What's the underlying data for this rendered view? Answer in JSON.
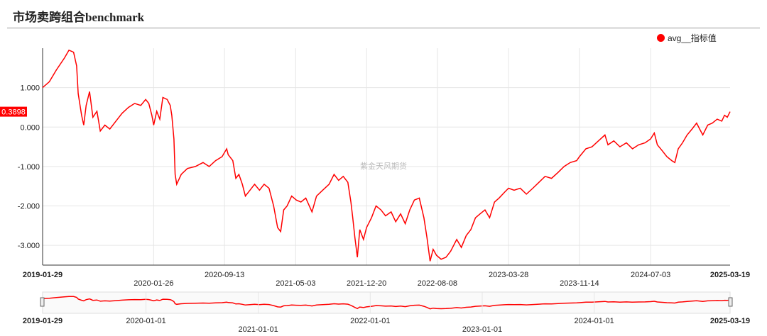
{
  "title": "市场卖跨组合benchmark",
  "watermark": "紫金天风期货",
  "legend": {
    "label": "avg__指标值",
    "color": "#ff0000"
  },
  "last_value_label": "0.3898",
  "chart_data": {
    "type": "line",
    "title": "市场卖跨组合benchmark",
    "series": [
      {
        "name": "avg__指标值",
        "color": "#ff0000",
        "points": [
          [
            "2019-01-29",
            1.0
          ],
          [
            "2019-02-20",
            1.15
          ],
          [
            "2019-03-15",
            1.45
          ],
          [
            "2019-04-10",
            1.75
          ],
          [
            "2019-04-25",
            1.95
          ],
          [
            "2019-05-10",
            1.9
          ],
          [
            "2019-05-20",
            1.55
          ],
          [
            "2019-05-25",
            0.85
          ],
          [
            "2019-06-05",
            0.3
          ],
          [
            "2019-06-12",
            0.05
          ],
          [
            "2019-06-20",
            0.55
          ],
          [
            "2019-07-01",
            0.9
          ],
          [
            "2019-07-12",
            0.25
          ],
          [
            "2019-07-25",
            0.4
          ],
          [
            "2019-08-05",
            -0.1
          ],
          [
            "2019-08-20",
            0.05
          ],
          [
            "2019-09-05",
            -0.05
          ],
          [
            "2019-09-25",
            0.15
          ],
          [
            "2019-10-15",
            0.35
          ],
          [
            "2019-11-05",
            0.5
          ],
          [
            "2019-11-25",
            0.6
          ],
          [
            "2019-12-15",
            0.55
          ],
          [
            "2019-12-31",
            0.7
          ],
          [
            "2020-01-10",
            0.6
          ],
          [
            "2020-01-20",
            0.3
          ],
          [
            "2020-01-26",
            0.05
          ],
          [
            "2020-02-05",
            0.4
          ],
          [
            "2020-02-15",
            0.2
          ],
          [
            "2020-02-25",
            0.75
          ],
          [
            "2020-03-10",
            0.7
          ],
          [
            "2020-03-20",
            0.55
          ],
          [
            "2020-03-25",
            0.3
          ],
          [
            "2020-04-01",
            -0.3
          ],
          [
            "2020-04-05",
            -1.2
          ],
          [
            "2020-04-10",
            -1.45
          ],
          [
            "2020-04-25",
            -1.2
          ],
          [
            "2020-05-15",
            -1.05
          ],
          [
            "2020-06-10",
            -1.0
          ],
          [
            "2020-07-05",
            -0.9
          ],
          [
            "2020-07-25",
            -1.0
          ],
          [
            "2020-08-15",
            -0.85
          ],
          [
            "2020-09-05",
            -0.75
          ],
          [
            "2020-09-20",
            -0.55
          ],
          [
            "2020-09-25",
            -0.7
          ],
          [
            "2020-10-10",
            -0.85
          ],
          [
            "2020-10-20",
            -1.3
          ],
          [
            "2020-10-30",
            -1.2
          ],
          [
            "2020-11-10",
            -1.45
          ],
          [
            "2020-11-20",
            -1.75
          ],
          [
            "2020-12-05",
            -1.6
          ],
          [
            "2020-12-20",
            -1.45
          ],
          [
            "2021-01-05",
            -1.6
          ],
          [
            "2021-01-20",
            -1.45
          ],
          [
            "2021-02-05",
            -1.55
          ],
          [
            "2021-02-20",
            -2.0
          ],
          [
            "2021-03-05",
            -2.55
          ],
          [
            "2021-03-15",
            -2.65
          ],
          [
            "2021-03-25",
            -2.1
          ],
          [
            "2021-04-05",
            -2.0
          ],
          [
            "2021-04-20",
            -1.75
          ],
          [
            "2021-05-05",
            -1.85
          ],
          [
            "2021-05-20",
            -1.9
          ],
          [
            "2021-06-05",
            -1.8
          ],
          [
            "2021-06-25",
            -2.15
          ],
          [
            "2021-07-10",
            -1.75
          ],
          [
            "2021-07-30",
            -1.6
          ],
          [
            "2021-08-20",
            -1.45
          ],
          [
            "2021-09-05",
            -1.2
          ],
          [
            "2021-09-20",
            -1.35
          ],
          [
            "2021-10-05",
            -1.25
          ],
          [
            "2021-10-20",
            -1.4
          ],
          [
            "2021-10-30",
            -1.9
          ],
          [
            "2021-11-05",
            -2.3
          ],
          [
            "2021-11-12",
            -2.8
          ],
          [
            "2021-11-20",
            -3.3
          ],
          [
            "2021-11-28",
            -2.6
          ],
          [
            "2021-12-10",
            -2.85
          ],
          [
            "2021-12-20",
            -2.55
          ],
          [
            "2022-01-05",
            -2.3
          ],
          [
            "2022-01-20",
            -2.0
          ],
          [
            "2022-02-05",
            -2.1
          ],
          [
            "2022-02-20",
            -2.25
          ],
          [
            "2022-03-10",
            -2.15
          ],
          [
            "2022-03-25",
            -2.4
          ],
          [
            "2022-04-10",
            -2.2
          ],
          [
            "2022-04-25",
            -2.45
          ],
          [
            "2022-05-10",
            -2.1
          ],
          [
            "2022-05-25",
            -1.85
          ],
          [
            "2022-06-10",
            -1.8
          ],
          [
            "2022-06-25",
            -2.3
          ],
          [
            "2022-07-05",
            -2.8
          ],
          [
            "2022-07-15",
            -3.4
          ],
          [
            "2022-07-25",
            -3.1
          ],
          [
            "2022-08-05",
            -3.25
          ],
          [
            "2022-08-20",
            -3.35
          ],
          [
            "2022-09-05",
            -3.3
          ],
          [
            "2022-09-20",
            -3.15
          ],
          [
            "2022-10-10",
            -2.85
          ],
          [
            "2022-10-25",
            -3.05
          ],
          [
            "2022-11-10",
            -2.75
          ],
          [
            "2022-11-25",
            -2.6
          ],
          [
            "2022-12-10",
            -2.3
          ],
          [
            "2022-12-25",
            -2.2
          ],
          [
            "2023-01-10",
            -2.1
          ],
          [
            "2023-01-25",
            -2.3
          ],
          [
            "2023-02-10",
            -1.9
          ],
          [
            "2023-02-25",
            -1.8
          ],
          [
            "2023-03-15",
            -1.65
          ],
          [
            "2023-03-28",
            -1.55
          ],
          [
            "2023-04-15",
            -1.6
          ],
          [
            "2023-05-05",
            -1.55
          ],
          [
            "2023-05-25",
            -1.7
          ],
          [
            "2023-06-15",
            -1.55
          ],
          [
            "2023-07-05",
            -1.4
          ],
          [
            "2023-07-25",
            -1.25
          ],
          [
            "2023-08-15",
            -1.3
          ],
          [
            "2023-09-05",
            -1.15
          ],
          [
            "2023-09-25",
            -1.0
          ],
          [
            "2023-10-15",
            -0.9
          ],
          [
            "2023-11-05",
            -0.85
          ],
          [
            "2023-11-14",
            -0.75
          ],
          [
            "2023-12-05",
            -0.55
          ],
          [
            "2023-12-25",
            -0.5
          ],
          [
            "2024-01-15",
            -0.35
          ],
          [
            "2024-02-05",
            -0.2
          ],
          [
            "2024-02-15",
            -0.45
          ],
          [
            "2024-03-05",
            -0.35
          ],
          [
            "2024-03-25",
            -0.5
          ],
          [
            "2024-04-15",
            -0.4
          ],
          [
            "2024-05-05",
            -0.55
          ],
          [
            "2024-05-25",
            -0.45
          ],
          [
            "2024-06-15",
            -0.4
          ],
          [
            "2024-07-03",
            -0.3
          ],
          [
            "2024-07-15",
            -0.15
          ],
          [
            "2024-07-25",
            -0.45
          ],
          [
            "2024-08-10",
            -0.6
          ],
          [
            "2024-08-25",
            -0.75
          ],
          [
            "2024-09-10",
            -0.85
          ],
          [
            "2024-09-20",
            -0.9
          ],
          [
            "2024-10-01",
            -0.55
          ],
          [
            "2024-10-15",
            -0.4
          ],
          [
            "2024-10-30",
            -0.2
          ],
          [
            "2024-11-15",
            -0.05
          ],
          [
            "2024-11-30",
            0.1
          ],
          [
            "2024-12-10",
            -0.05
          ],
          [
            "2024-12-20",
            -0.2
          ],
          [
            "2025-01-05",
            0.05
          ],
          [
            "2025-01-20",
            0.1
          ],
          [
            "2025-02-05",
            0.2
          ],
          [
            "2025-02-20",
            0.15
          ],
          [
            "2025-03-01",
            0.3
          ],
          [
            "2025-03-10",
            0.25
          ],
          [
            "2025-03-19",
            0.3898
          ]
        ]
      }
    ],
    "x_start": "2019-01-29",
    "x_end": "2025-03-19",
    "y_ticks": [
      1.0,
      0.0,
      -1.0,
      -2.0,
      -3.0
    ],
    "y_tick_labels": [
      "1.000",
      "0.000",
      "-1.000",
      "-2.000",
      "-3.000"
    ],
    "ylim": [
      -3.5,
      2.0
    ],
    "x_tick_labels_upper": [
      "2020-01-26",
      "2021-05-03",
      "2021-12-20",
      "2022-08-08",
      "2023-11-14"
    ],
    "x_tick_labels_lower": [
      "2020-09-13",
      "2023-03-28",
      "2024-07-03"
    ],
    "x_endpoint_labels": [
      "2019-01-29",
      "2025-03-19"
    ],
    "zoom_tick_labels_upper": [
      "2020-01-01",
      "2022-01-01",
      "2024-01-01"
    ],
    "zoom_tick_labels_lower": [
      "2021-01-01",
      "2023-01-01"
    ],
    "grid": true,
    "legend_position": "top-right"
  }
}
